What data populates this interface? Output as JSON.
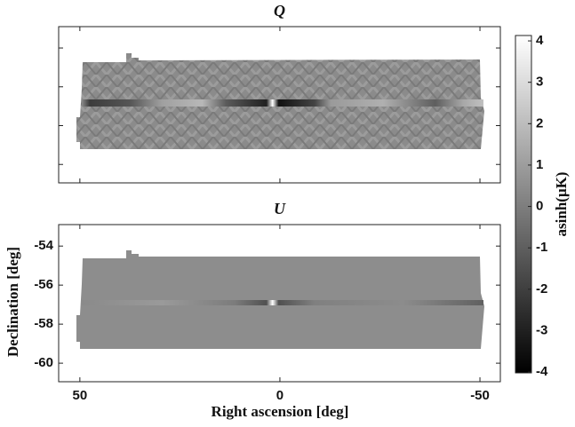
{
  "chart_data": [
    {
      "type": "heatmap",
      "title": "Q",
      "xlim": [
        55.3,
        -55.1
      ],
      "ylim": [
        -60.95,
        -52.9
      ],
      "xticks": [
        50,
        0,
        -50
      ],
      "yticks": [
        -54,
        -56,
        -58,
        -60
      ],
      "tick_labels": false
    },
    {
      "type": "heatmap",
      "title": "U",
      "xlim": [
        55.3,
        -55.1
      ],
      "ylim": [
        -60.95,
        -52.9
      ],
      "xticks": [
        50,
        0,
        -50
      ],
      "yticks": [
        -54,
        -56,
        -58,
        -60
      ],
      "tick_labels": true
    }
  ],
  "xlabel": "Right ascension [deg]",
  "ylabel": "Declination [deg]",
  "colorbar": {
    "label": "asinh(μK)",
    "lim": [
      -4.02,
      4.13
    ],
    "ticks": [
      -4,
      -3,
      -2,
      -1,
      0,
      1,
      2,
      3,
      4
    ]
  }
}
